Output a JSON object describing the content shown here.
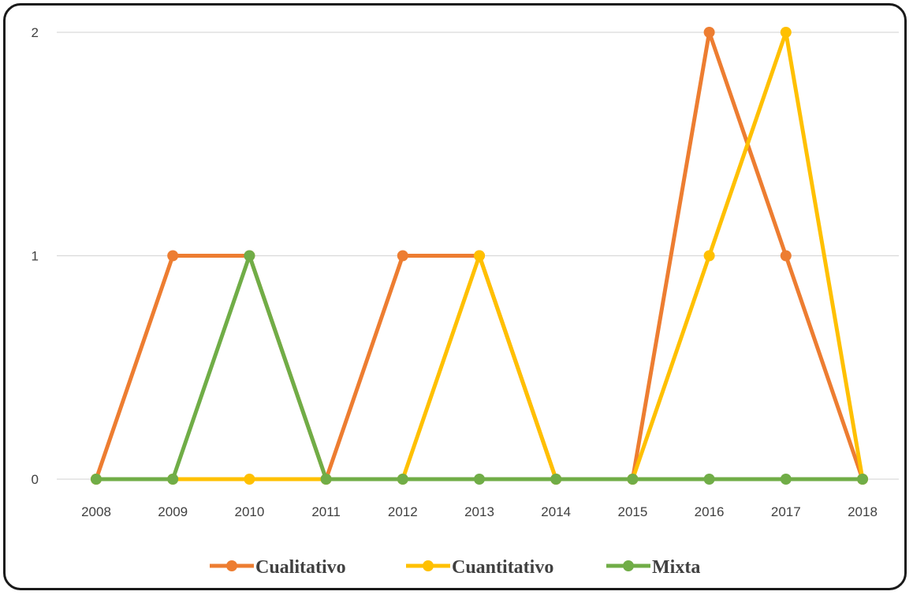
{
  "chart_data": {
    "type": "line",
    "title": "",
    "xlabel": "",
    "ylabel": "",
    "categories": [
      "2008",
      "2009",
      "2010",
      "2011",
      "2012",
      "2013",
      "2014",
      "2015",
      "2016",
      "2017",
      "2018"
    ],
    "ylim": [
      0,
      2
    ],
    "yticks": [
      "0",
      "1",
      "2"
    ],
    "grid": true,
    "legend_position": "bottom",
    "series": [
      {
        "name": "Cualitativo",
        "color": "#ED7D31",
        "values": [
          0,
          1,
          1,
          0,
          1,
          1,
          0,
          0,
          2,
          1,
          0
        ]
      },
      {
        "name": "Cuantitativo",
        "color": "#FFC000",
        "values": [
          0,
          0,
          0,
          0,
          0,
          1,
          0,
          0,
          1,
          2,
          0
        ]
      },
      {
        "name": "Mixta",
        "color": "#70AD47",
        "values": [
          0,
          0,
          1,
          0,
          0,
          0,
          0,
          0,
          0,
          0,
          0
        ]
      }
    ]
  }
}
